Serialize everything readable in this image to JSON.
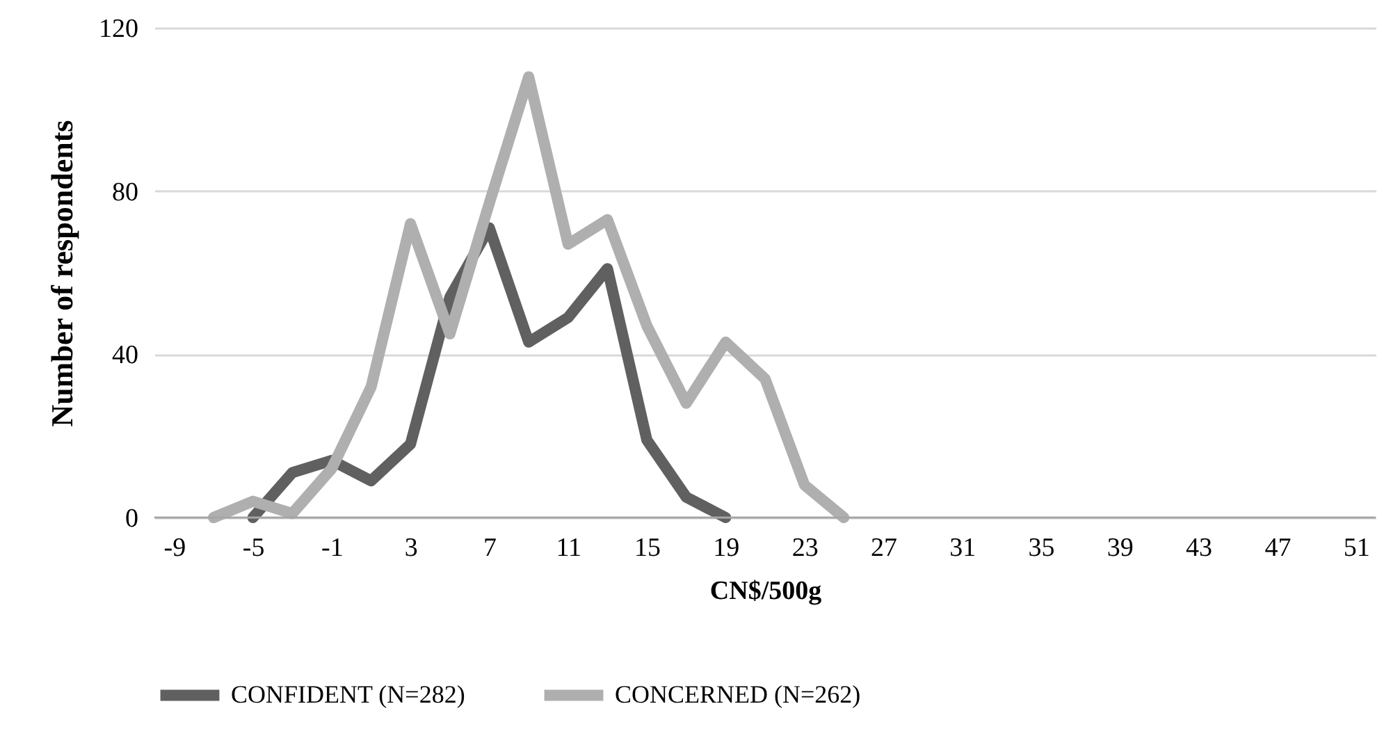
{
  "chart_data": {
    "type": "line",
    "xlabel": "CN$/500g",
    "ylabel": "Number of respondents",
    "xlim": [
      -10,
      52
    ],
    "xticks": [
      -9,
      -5,
      -1,
      3,
      7,
      11,
      15,
      19,
      23,
      27,
      31,
      35,
      39,
      43,
      47,
      51
    ],
    "ylim": [
      0,
      120
    ],
    "yticks": [
      0,
      40,
      80,
      120
    ],
    "grid": "y",
    "legend": "bottom",
    "marker": "none",
    "line_style": "solid",
    "series": [
      {
        "name": "CONFIDENT (N=282)",
        "color": "#606060",
        "x": [
          -5,
          -3,
          -1,
          1,
          3,
          5,
          7,
          9,
          11,
          13,
          15,
          17,
          19
        ],
        "values": [
          0,
          11,
          14,
          9,
          18,
          54,
          71,
          43,
          49,
          61,
          19,
          5,
          0
        ]
      },
      {
        "name": "CONCERNED (N=262)",
        "color": "#afafaf",
        "x": [
          -7,
          -5,
          -3,
          -1,
          1,
          3,
          5,
          7,
          9,
          11,
          13,
          15,
          17,
          19,
          21,
          23,
          25
        ],
        "values": [
          0,
          4,
          1,
          12,
          32,
          72,
          45,
          77,
          108,
          67,
          73,
          47,
          28,
          43,
          34,
          8,
          0
        ]
      }
    ]
  }
}
